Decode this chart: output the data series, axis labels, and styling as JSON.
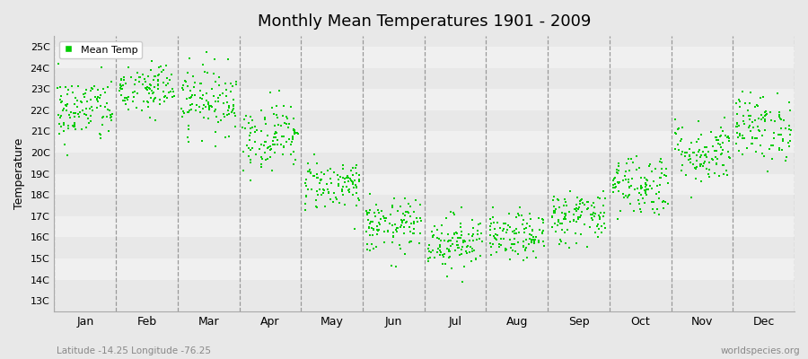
{
  "title": "Monthly Mean Temperatures 1901 - 2009",
  "ylabel": "Temperature",
  "months": [
    "Jan",
    "Feb",
    "Mar",
    "Apr",
    "May",
    "Jun",
    "Jul",
    "Aug",
    "Sep",
    "Oct",
    "Nov",
    "Dec"
  ],
  "month_means": [
    22.0,
    23.0,
    22.5,
    20.8,
    18.5,
    16.5,
    15.8,
    16.0,
    17.0,
    18.5,
    20.0,
    21.2
  ],
  "month_stds": [
    0.8,
    0.7,
    0.8,
    0.8,
    0.6,
    0.65,
    0.65,
    0.55,
    0.65,
    0.75,
    0.75,
    0.8
  ],
  "ylim": [
    12.5,
    25.5
  ],
  "yticks": [
    13,
    14,
    15,
    16,
    17,
    18,
    19,
    20,
    21,
    22,
    23,
    24,
    25
  ],
  "ytick_labels": [
    "13C",
    "14C",
    "15C",
    "16C",
    "17C",
    "18C",
    "19C",
    "20C",
    "21C",
    "22C",
    "23C",
    "24C",
    "25C"
  ],
  "n_years": 109,
  "dot_color": "#00CC00",
  "dot_size": 3,
  "marker": "s",
  "bg_color": "#E8E8E8",
  "band_color_light": "#F0F0F0",
  "dashed_line_color": "#999999",
  "legend_label": "Mean Temp",
  "bottom_left": "Latitude -14.25 Longitude -76.25",
  "bottom_right": "worldspecies.org",
  "seed": 42
}
